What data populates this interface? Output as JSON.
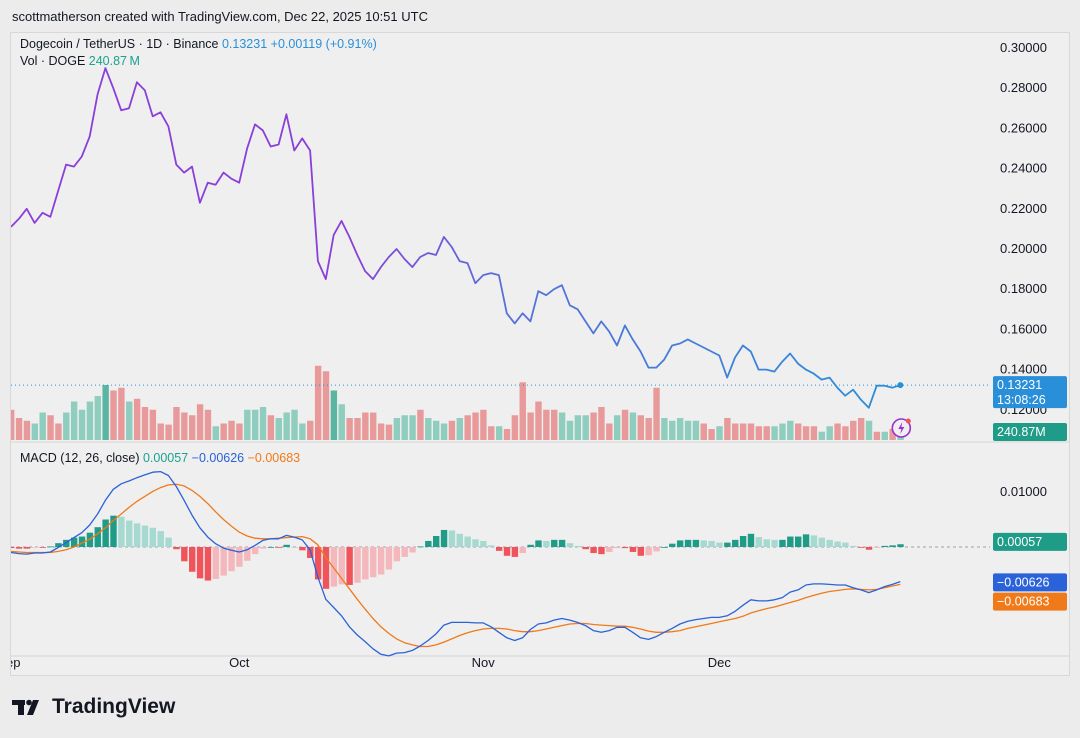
{
  "header": {
    "text": "scottmatherson created with TradingView.com, Dec 22, 2025 10:51 UTC"
  },
  "legend": {
    "symbol": "Dogecoin / TetherUS · 1D · Binance",
    "price": "0.13231",
    "change": "+0.00119 (+0.91%)",
    "vol_label": "Vol · DOGE",
    "vol_value": "240.87",
    "vol_unit": "M",
    "macd_label": "MACD (12, 26, close)",
    "macd_hist": "0.00057",
    "macd_line": "−0.00626",
    "macd_signal": "−0.00683"
  },
  "badges": {
    "price": "0.13231",
    "countdown": "13:08:26",
    "volume": "240.87M",
    "hist": "0.00057",
    "macd": "−0.00626",
    "signal": "−0.00683"
  },
  "colors": {
    "price_purple": "#8a3fd9",
    "price_blue": "#2a8fd9",
    "vol_up": "#8fcdbf",
    "vol_down": "#e89a9a",
    "vol_up_strong": "#5ab5a3",
    "hist_pos_strong": "#1f9c88",
    "hist_pos_weak": "#a6d9cf",
    "hist_neg_strong": "#f0535a",
    "hist_neg_weak": "#f4b8bc",
    "macd_line": "#2a62d9",
    "signal_line": "#f07a1a"
  },
  "icons": {
    "logo": "tradingview-logo-icon",
    "alert": "lightning-alert-icon"
  },
  "logo_text": "TradingView",
  "chart_data": {
    "type": "line",
    "price_axis": {
      "ticks": [
        "0.30000",
        "0.28000",
        "0.26000",
        "0.24000",
        "0.22000",
        "0.20000",
        "0.18000",
        "0.16000",
        "0.14000",
        "0.12000"
      ],
      "ylim": [
        0.12,
        0.3
      ]
    },
    "macd_axis": {
      "ticks": [
        "0.01000"
      ]
    },
    "x_labels": [
      {
        "label": "ep",
        "day": -1
      },
      {
        "label": "Oct",
        "day": 29
      },
      {
        "label": "Nov",
        "day": 60
      },
      {
        "label": "Dec",
        "day": 90
      }
    ],
    "price": [
      0.211,
      0.215,
      0.22,
      0.213,
      0.218,
      0.216,
      0.229,
      0.242,
      0.241,
      0.246,
      0.256,
      0.277,
      0.29,
      0.28,
      0.269,
      0.27,
      0.283,
      0.279,
      0.266,
      0.268,
      0.261,
      0.242,
      0.238,
      0.241,
      0.223,
      0.233,
      0.232,
      0.238,
      0.235,
      0.233,
      0.25,
      0.262,
      0.259,
      0.251,
      0.252,
      0.267,
      0.249,
      0.255,
      0.249,
      0.194,
      0.185,
      0.207,
      0.214,
      0.206,
      0.197,
      0.189,
      0.185,
      0.191,
      0.196,
      0.2,
      0.195,
      0.191,
      0.196,
      0.198,
      0.197,
      0.206,
      0.201,
      0.194,
      0.193,
      0.183,
      0.187,
      0.188,
      0.187,
      0.168,
      0.163,
      0.168,
      0.164,
      0.179,
      0.177,
      0.18,
      0.182,
      0.172,
      0.17,
      0.164,
      0.158,
      0.164,
      0.159,
      0.152,
      0.162,
      0.155,
      0.149,
      0.141,
      0.141,
      0.145,
      0.152,
      0.153,
      0.155,
      0.153,
      0.151,
      0.149,
      0.147,
      0.136,
      0.146,
      0.152,
      0.149,
      0.14,
      0.14,
      0.139,
      0.144,
      0.148,
      0.143,
      0.14,
      0.138,
      0.135,
      0.136,
      0.131,
      0.127,
      0.13,
      0.125,
      0.121,
      0.132,
      0.132,
      0.131,
      0.1323
    ],
    "volume": [
      {
        "v": 0.55,
        "up": false
      },
      {
        "v": 0.4,
        "up": false
      },
      {
        "v": 0.35,
        "up": false
      },
      {
        "v": 0.3,
        "up": true
      },
      {
        "v": 0.5,
        "up": true
      },
      {
        "v": 0.45,
        "up": false
      },
      {
        "v": 0.3,
        "up": false
      },
      {
        "v": 0.5,
        "up": true
      },
      {
        "v": 0.7,
        "up": true
      },
      {
        "v": 0.55,
        "up": true
      },
      {
        "v": 0.7,
        "up": true
      },
      {
        "v": 0.8,
        "up": true
      },
      {
        "v": 1.0,
        "up": true
      },
      {
        "v": 0.9,
        "up": false
      },
      {
        "v": 0.95,
        "up": false
      },
      {
        "v": 0.7,
        "up": true
      },
      {
        "v": 0.75,
        "up": false
      },
      {
        "v": 0.6,
        "up": false
      },
      {
        "v": 0.55,
        "up": false
      },
      {
        "v": 0.3,
        "up": false
      },
      {
        "v": 0.28,
        "up": false
      },
      {
        "v": 0.6,
        "up": false
      },
      {
        "v": 0.5,
        "up": false
      },
      {
        "v": 0.45,
        "up": false
      },
      {
        "v": 0.65,
        "up": false
      },
      {
        "v": 0.55,
        "up": false
      },
      {
        "v": 0.25,
        "up": true
      },
      {
        "v": 0.3,
        "up": false
      },
      {
        "v": 0.35,
        "up": false
      },
      {
        "v": 0.3,
        "up": false
      },
      {
        "v": 0.55,
        "up": true
      },
      {
        "v": 0.55,
        "up": true
      },
      {
        "v": 0.6,
        "up": true
      },
      {
        "v": 0.45,
        "up": false
      },
      {
        "v": 0.4,
        "up": true
      },
      {
        "v": 0.5,
        "up": true
      },
      {
        "v": 0.55,
        "up": true
      },
      {
        "v": 0.3,
        "up": true
      },
      {
        "v": 0.35,
        "up": false
      },
      {
        "v": 1.35,
        "up": false
      },
      {
        "v": 1.25,
        "up": false
      },
      {
        "v": 0.9,
        "up": true
      },
      {
        "v": 0.65,
        "up": true
      },
      {
        "v": 0.4,
        "up": false
      },
      {
        "v": 0.4,
        "up": false
      },
      {
        "v": 0.5,
        "up": false
      },
      {
        "v": 0.5,
        "up": false
      },
      {
        "v": 0.3,
        "up": false
      },
      {
        "v": 0.28,
        "up": false
      },
      {
        "v": 0.4,
        "up": true
      },
      {
        "v": 0.45,
        "up": true
      },
      {
        "v": 0.45,
        "up": true
      },
      {
        "v": 0.55,
        "up": false
      },
      {
        "v": 0.4,
        "up": true
      },
      {
        "v": 0.35,
        "up": true
      },
      {
        "v": 0.3,
        "up": true
      },
      {
        "v": 0.35,
        "up": false
      },
      {
        "v": 0.4,
        "up": true
      },
      {
        "v": 0.45,
        "up": false
      },
      {
        "v": 0.5,
        "up": false
      },
      {
        "v": 0.55,
        "up": false
      },
      {
        "v": 0.25,
        "up": false
      },
      {
        "v": 0.25,
        "up": true
      },
      {
        "v": 0.2,
        "up": false
      },
      {
        "v": 0.45,
        "up": false
      },
      {
        "v": 1.05,
        "up": false
      },
      {
        "v": 0.5,
        "up": false
      },
      {
        "v": 0.7,
        "up": false
      },
      {
        "v": 0.55,
        "up": false
      },
      {
        "v": 0.55,
        "up": false
      },
      {
        "v": 0.5,
        "up": true
      },
      {
        "v": 0.35,
        "up": true
      },
      {
        "v": 0.45,
        "up": true
      },
      {
        "v": 0.45,
        "up": true
      },
      {
        "v": 0.5,
        "up": false
      },
      {
        "v": 0.6,
        "up": false
      },
      {
        "v": 0.3,
        "up": false
      },
      {
        "v": 0.45,
        "up": true
      },
      {
        "v": 0.55,
        "up": false
      },
      {
        "v": 0.5,
        "up": true
      },
      {
        "v": 0.45,
        "up": false
      },
      {
        "v": 0.4,
        "up": false
      },
      {
        "v": 0.95,
        "up": false
      },
      {
        "v": 0.4,
        "up": true
      },
      {
        "v": 0.35,
        "up": true
      },
      {
        "v": 0.4,
        "up": true
      },
      {
        "v": 0.35,
        "up": true
      },
      {
        "v": 0.35,
        "up": true
      },
      {
        "v": 0.3,
        "up": false
      },
      {
        "v": 0.2,
        "up": false
      },
      {
        "v": 0.25,
        "up": true
      },
      {
        "v": 0.4,
        "up": false
      },
      {
        "v": 0.3,
        "up": false
      },
      {
        "v": 0.3,
        "up": false
      },
      {
        "v": 0.3,
        "up": false
      },
      {
        "v": 0.25,
        "up": false
      },
      {
        "v": 0.25,
        "up": false
      },
      {
        "v": 0.25,
        "up": true
      },
      {
        "v": 0.3,
        "up": true
      },
      {
        "v": 0.35,
        "up": true
      },
      {
        "v": 0.3,
        "up": false
      },
      {
        "v": 0.25,
        "up": false
      },
      {
        "v": 0.25,
        "up": false
      },
      {
        "v": 0.15,
        "up": true
      },
      {
        "v": 0.25,
        "up": true
      },
      {
        "v": 0.3,
        "up": false
      },
      {
        "v": 0.25,
        "up": false
      },
      {
        "v": 0.35,
        "up": false
      },
      {
        "v": 0.4,
        "up": false
      },
      {
        "v": 0.35,
        "up": true
      },
      {
        "v": 0.15,
        "up": false
      },
      {
        "v": 0.15,
        "up": true
      },
      {
        "v": 0.2,
        "up": false
      },
      {
        "v": 0.15,
        "up": true
      }
    ],
    "macd_line": [
      -0.001,
      -0.0012,
      -0.0013,
      -0.0011,
      -0.0011,
      -0.0009,
      -0.0001,
      0.0008,
      0.0017,
      0.0026,
      0.004,
      0.006,
      0.0085,
      0.0105,
      0.0115,
      0.012,
      0.0126,
      0.0131,
      0.0136,
      0.0137,
      0.013,
      0.011,
      0.0085,
      0.0058,
      0.0035,
      0.0018,
      0.0006,
      -0.0002,
      -0.0006,
      -0.0009,
      -0.0005,
      0.0003,
      0.0012,
      0.0015,
      0.0015,
      0.0021,
      0.0018,
      0.0013,
      -0.0005,
      -0.0055,
      -0.0095,
      -0.011,
      -0.0125,
      -0.0145,
      -0.016,
      -0.0172,
      -0.0185,
      -0.0195,
      -0.0198,
      -0.0193,
      -0.0192,
      -0.0188,
      -0.018,
      -0.017,
      -0.0158,
      -0.0142,
      -0.0137,
      -0.0137,
      -0.0137,
      -0.0138,
      -0.0138,
      -0.0145,
      -0.0155,
      -0.0165,
      -0.017,
      -0.0165,
      -0.015,
      -0.014,
      -0.0138,
      -0.0133,
      -0.013,
      -0.0133,
      -0.0137,
      -0.0143,
      -0.0152,
      -0.0155,
      -0.0152,
      -0.0146,
      -0.0146,
      -0.0155,
      -0.0165,
      -0.0168,
      -0.0163,
      -0.0155,
      -0.0148,
      -0.014,
      -0.0135,
      -0.0132,
      -0.013,
      -0.0128,
      -0.0128,
      -0.0125,
      -0.0117,
      -0.0106,
      -0.0096,
      -0.0098,
      -0.0098,
      -0.0096,
      -0.0092,
      -0.0082,
      -0.0078,
      -0.0069,
      -0.0067,
      -0.0067,
      -0.0068,
      -0.0069,
      -0.0069,
      -0.0074,
      -0.0078,
      -0.0083,
      -0.0078,
      -0.0072,
      -0.0068,
      -0.0063
    ],
    "signal_line": [
      -0.0008,
      -0.0009,
      -0.001,
      -0.001,
      -0.001,
      -0.001,
      -0.0008,
      -0.0005,
      0.0,
      0.0007,
      0.0014,
      0.0024,
      0.0035,
      0.0048,
      0.006,
      0.0072,
      0.0083,
      0.0092,
      0.0101,
      0.0108,
      0.0113,
      0.0114,
      0.0111,
      0.0103,
      0.0092,
      0.0079,
      0.0064,
      0.005,
      0.0038,
      0.0027,
      0.002,
      0.0016,
      0.0015,
      0.0015,
      0.0016,
      0.0017,
      0.0018,
      0.0019,
      0.0015,
      0.0004,
      -0.0019,
      -0.0038,
      -0.0057,
      -0.0076,
      -0.0095,
      -0.0113,
      -0.013,
      -0.0145,
      -0.0157,
      -0.0167,
      -0.0174,
      -0.0178,
      -0.0181,
      -0.0181,
      -0.0178,
      -0.0173,
      -0.0167,
      -0.0161,
      -0.0156,
      -0.0152,
      -0.0149,
      -0.0148,
      -0.0148,
      -0.0149,
      -0.0152,
      -0.0154,
      -0.0154,
      -0.0152,
      -0.0149,
      -0.0146,
      -0.0143,
      -0.014,
      -0.0139,
      -0.0139,
      -0.0141,
      -0.0142,
      -0.0143,
      -0.0144,
      -0.0144,
      -0.0146,
      -0.0149,
      -0.0153,
      -0.0155,
      -0.0155,
      -0.0154,
      -0.0152,
      -0.0148,
      -0.0145,
      -0.0142,
      -0.0139,
      -0.0136,
      -0.0133,
      -0.013,
      -0.0126,
      -0.012,
      -0.0116,
      -0.0112,
      -0.0109,
      -0.0105,
      -0.0101,
      -0.0097,
      -0.0092,
      -0.0088,
      -0.0084,
      -0.0081,
      -0.0079,
      -0.0077,
      -0.0076,
      -0.0077,
      -0.0078,
      -0.0077,
      -0.0074,
      -0.0071,
      -0.0068
    ]
  }
}
